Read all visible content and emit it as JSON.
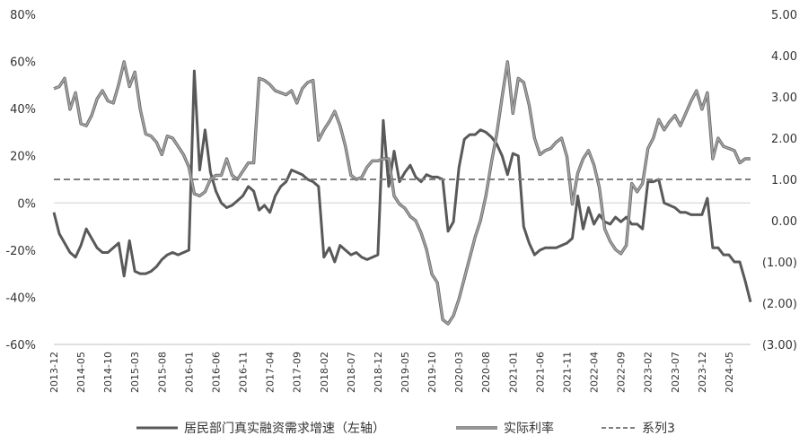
{
  "chart_data": {
    "type": "line",
    "title": "",
    "grid": false,
    "legend_position": "bottom",
    "x_tick_labels": [
      "2013-12",
      "2014-05",
      "2014-10",
      "2015-03",
      "2015-08",
      "2016-01",
      "2016-06",
      "2016-11",
      "2017-04",
      "2017-09",
      "2018-02",
      "2018-07",
      "2018-12",
      "2019-05",
      "2019-10",
      "2020-03",
      "2020-08",
      "2021-01",
      "2021-06",
      "2021-11",
      "2022-04",
      "2022-09",
      "2023-02",
      "2023-07",
      "2023-12",
      "2024-05"
    ],
    "x_start": "2013-12",
    "x_end": "2024-09",
    "left_axis": {
      "ylim": [
        -60,
        80
      ],
      "tick_labels": [
        "-60%",
        "-40%",
        "-20%",
        "0%",
        "20%",
        "40%",
        "60%",
        "80%"
      ],
      "tick_values": [
        -60,
        -40,
        -20,
        0,
        20,
        40,
        60,
        80
      ]
    },
    "right_axis": {
      "ylim": [
        -3,
        5
      ],
      "tick_labels": [
        "(3.00)",
        "(2.00)",
        "(1.00)",
        "0.00",
        "1.00",
        "2.00",
        "3.00",
        "4.00",
        "5.00"
      ],
      "tick_values": [
        -3,
        -2,
        -1,
        0,
        1,
        2,
        3,
        4,
        5
      ]
    },
    "series": [
      {
        "name": "居民部门真实融资需求增速（左轴）",
        "axis": "left",
        "color": "#595959",
        "style": "solid",
        "points": [
          [
            "2013-12",
            -4
          ],
          [
            "2014-01",
            -13
          ],
          [
            "2014-02",
            -17
          ],
          [
            "2014-03",
            -21
          ],
          [
            "2014-04",
            -23
          ],
          [
            "2014-05",
            -18
          ],
          [
            "2014-06",
            -11
          ],
          [
            "2014-07",
            -15
          ],
          [
            "2014-08",
            -19
          ],
          [
            "2014-09",
            -21
          ],
          [
            "2014-10",
            -21
          ],
          [
            "2014-11",
            -19
          ],
          [
            "2014-12",
            -17
          ],
          [
            "2015-01",
            -31
          ],
          [
            "2015-02",
            -16
          ],
          [
            "2015-03",
            -29
          ],
          [
            "2015-04",
            -30
          ],
          [
            "2015-05",
            -30
          ],
          [
            "2015-06",
            -29
          ],
          [
            "2015-07",
            -27
          ],
          [
            "2015-08",
            -24
          ],
          [
            "2015-09",
            -22
          ],
          [
            "2015-10",
            -21
          ],
          [
            "2015-11",
            -22
          ],
          [
            "2015-12",
            -21
          ],
          [
            "2016-01",
            -20
          ],
          [
            "2016-02",
            56
          ],
          [
            "2016-03",
            14
          ],
          [
            "2016-04",
            31
          ],
          [
            "2016-05",
            13
          ],
          [
            "2016-06",
            5
          ],
          [
            "2016-07",
            0
          ],
          [
            "2016-08",
            -2
          ],
          [
            "2016-09",
            -1
          ],
          [
            "2016-10",
            1
          ],
          [
            "2016-11",
            3
          ],
          [
            "2016-12",
            7
          ],
          [
            "2017-01",
            5
          ],
          [
            "2017-02",
            -3
          ],
          [
            "2017-03",
            -1
          ],
          [
            "2017-04",
            -4
          ],
          [
            "2017-05",
            3
          ],
          [
            "2017-06",
            7
          ],
          [
            "2017-07",
            9
          ],
          [
            "2017-08",
            14
          ],
          [
            "2017-09",
            13
          ],
          [
            "2017-10",
            12
          ],
          [
            "2017-11",
            10
          ],
          [
            "2017-12",
            9
          ],
          [
            "2018-01",
            7
          ],
          [
            "2018-02",
            -23
          ],
          [
            "2018-03",
            -19
          ],
          [
            "2018-04",
            -25
          ],
          [
            "2018-05",
            -18
          ],
          [
            "2018-06",
            -20
          ],
          [
            "2018-07",
            -22
          ],
          [
            "2018-08",
            -21
          ],
          [
            "2018-09",
            -23
          ],
          [
            "2018-10",
            -24
          ],
          [
            "2018-11",
            -23
          ],
          [
            "2018-12",
            -22
          ],
          [
            "2019-01",
            35
          ],
          [
            "2019-02",
            7
          ],
          [
            "2019-03",
            22
          ],
          [
            "2019-04",
            9
          ],
          [
            "2019-05",
            13
          ],
          [
            "2019-06",
            16
          ],
          [
            "2019-07",
            11
          ],
          [
            "2019-08",
            9
          ],
          [
            "2019-09",
            12
          ],
          [
            "2019-10",
            11
          ],
          [
            "2019-11",
            11
          ],
          [
            "2019-12",
            10
          ],
          [
            "2020-01",
            -12
          ],
          [
            "2020-02",
            -8
          ],
          [
            "2020-03",
            15
          ],
          [
            "2020-04",
            27
          ],
          [
            "2020-05",
            29
          ],
          [
            "2020-06",
            29
          ],
          [
            "2020-07",
            31
          ],
          [
            "2020-08",
            30
          ],
          [
            "2020-09",
            28
          ],
          [
            "2020-10",
            25
          ],
          [
            "2020-11",
            20
          ],
          [
            "2020-12",
            12
          ],
          [
            "2021-01",
            21
          ],
          [
            "2021-02",
            20
          ],
          [
            "2021-03",
            -10
          ],
          [
            "2021-04",
            -17
          ],
          [
            "2021-05",
            -22
          ],
          [
            "2021-06",
            -20
          ],
          [
            "2021-07",
            -19
          ],
          [
            "2021-08",
            -19
          ],
          [
            "2021-09",
            -19
          ],
          [
            "2021-10",
            -18
          ],
          [
            "2021-11",
            -17
          ],
          [
            "2021-12",
            -15
          ],
          [
            "2022-01",
            3
          ],
          [
            "2022-02",
            -11
          ],
          [
            "2022-03",
            -2
          ],
          [
            "2022-04",
            -9
          ],
          [
            "2022-05",
            -5
          ],
          [
            "2022-06",
            -8
          ],
          [
            "2022-07",
            -9
          ],
          [
            "2022-08",
            -6
          ],
          [
            "2022-09",
            -8
          ],
          [
            "2022-10",
            -6
          ],
          [
            "2022-11",
            -9
          ],
          [
            "2022-12",
            -9
          ],
          [
            "2023-01",
            -11
          ],
          [
            "2023-02",
            9
          ],
          [
            "2023-03",
            9
          ],
          [
            "2023-04",
            10
          ],
          [
            "2023-05",
            0
          ],
          [
            "2023-06",
            -1
          ],
          [
            "2023-07",
            -2
          ],
          [
            "2023-08",
            -4
          ],
          [
            "2023-09",
            -4
          ],
          [
            "2023-10",
            -5
          ],
          [
            "2023-11",
            -5
          ],
          [
            "2023-12",
            -5
          ],
          [
            "2024-01",
            2
          ],
          [
            "2024-02",
            -19
          ],
          [
            "2024-03",
            -19
          ],
          [
            "2024-04",
            -22
          ],
          [
            "2024-05",
            -22
          ],
          [
            "2024-06",
            -25
          ],
          [
            "2024-07",
            -25
          ],
          [
            "2024-08",
            -33
          ],
          [
            "2024-09",
            -42
          ]
        ]
      },
      {
        "name": "实际利率",
        "axis": "right",
        "color": "#a6a6a6",
        "style": "outlined",
        "points": [
          [
            "2013-12",
            3.2
          ],
          [
            "2014-01",
            3.25
          ],
          [
            "2014-02",
            3.45
          ],
          [
            "2014-03",
            2.7
          ],
          [
            "2014-04",
            3.1
          ],
          [
            "2014-05",
            2.35
          ],
          [
            "2014-06",
            2.3
          ],
          [
            "2014-07",
            2.55
          ],
          [
            "2014-08",
            2.95
          ],
          [
            "2014-09",
            3.15
          ],
          [
            "2014-10",
            2.9
          ],
          [
            "2014-11",
            2.85
          ],
          [
            "2014-12",
            3.3
          ],
          [
            "2015-01",
            3.85
          ],
          [
            "2015-02",
            3.25
          ],
          [
            "2015-03",
            3.6
          ],
          [
            "2015-04",
            2.7
          ],
          [
            "2015-05",
            2.1
          ],
          [
            "2015-06",
            2.05
          ],
          [
            "2015-07",
            1.9
          ],
          [
            "2015-08",
            1.6
          ],
          [
            "2015-09",
            2.05
          ],
          [
            "2015-10",
            2.0
          ],
          [
            "2015-11",
            1.8
          ],
          [
            "2015-12",
            1.6
          ],
          [
            "2016-01",
            1.3
          ],
          [
            "2016-02",
            0.65
          ],
          [
            "2016-03",
            0.6
          ],
          [
            "2016-04",
            0.7
          ],
          [
            "2016-05",
            1.0
          ],
          [
            "2016-06",
            1.1
          ],
          [
            "2016-07",
            1.1
          ],
          [
            "2016-08",
            1.5
          ],
          [
            "2016-09",
            1.1
          ],
          [
            "2016-10",
            1.0
          ],
          [
            "2016-11",
            1.2
          ],
          [
            "2016-12",
            1.4
          ],
          [
            "2017-01",
            1.4
          ],
          [
            "2017-02",
            3.45
          ],
          [
            "2017-03",
            3.4
          ],
          [
            "2017-04",
            3.3
          ],
          [
            "2017-05",
            3.15
          ],
          [
            "2017-06",
            3.1
          ],
          [
            "2017-07",
            3.05
          ],
          [
            "2017-08",
            3.15
          ],
          [
            "2017-09",
            2.85
          ],
          [
            "2017-10",
            3.2
          ],
          [
            "2017-11",
            3.35
          ],
          [
            "2017-12",
            3.4
          ],
          [
            "2018-01",
            1.95
          ],
          [
            "2018-02",
            2.2
          ],
          [
            "2018-03",
            2.4
          ],
          [
            "2018-04",
            2.65
          ],
          [
            "2018-05",
            2.3
          ],
          [
            "2018-06",
            1.8
          ],
          [
            "2018-07",
            1.1
          ],
          [
            "2018-08",
            1.0
          ],
          [
            "2018-09",
            1.05
          ],
          [
            "2018-10",
            1.3
          ],
          [
            "2018-11",
            1.45
          ],
          [
            "2018-12",
            1.45
          ],
          [
            "2019-01",
            1.5
          ],
          [
            "2019-02",
            1.5
          ],
          [
            "2019-03",
            0.6
          ],
          [
            "2019-04",
            0.4
          ],
          [
            "2019-05",
            0.3
          ],
          [
            "2019-06",
            0.1
          ],
          [
            "2019-07",
            0.0
          ],
          [
            "2019-08",
            -0.3
          ],
          [
            "2019-09",
            -0.7
          ],
          [
            "2019-10",
            -1.3
          ],
          [
            "2019-11",
            -1.5
          ],
          [
            "2019-12",
            -2.4
          ],
          [
            "2020-01",
            -2.5
          ],
          [
            "2020-02",
            -2.3
          ],
          [
            "2020-03",
            -1.9
          ],
          [
            "2020-04",
            -1.4
          ],
          [
            "2020-05",
            -0.9
          ],
          [
            "2020-06",
            -0.4
          ],
          [
            "2020-07",
            0.0
          ],
          [
            "2020-08",
            0.6
          ],
          [
            "2020-09",
            1.4
          ],
          [
            "2020-10",
            2.1
          ],
          [
            "2020-11",
            3.0
          ],
          [
            "2020-12",
            3.85
          ],
          [
            "2021-01",
            2.6
          ],
          [
            "2021-02",
            3.45
          ],
          [
            "2021-03",
            3.35
          ],
          [
            "2021-04",
            2.8
          ],
          [
            "2021-05",
            2.0
          ],
          [
            "2021-06",
            1.6
          ],
          [
            "2021-07",
            1.7
          ],
          [
            "2021-08",
            1.75
          ],
          [
            "2021-09",
            1.9
          ],
          [
            "2021-10",
            2.0
          ],
          [
            "2021-11",
            1.55
          ],
          [
            "2021-12",
            0.4
          ],
          [
            "2022-01",
            1.15
          ],
          [
            "2022-02",
            1.5
          ],
          [
            "2022-03",
            1.7
          ],
          [
            "2022-04",
            1.35
          ],
          [
            "2022-05",
            0.8
          ],
          [
            "2022-06",
            -0.2
          ],
          [
            "2022-07",
            -0.5
          ],
          [
            "2022-08",
            -0.7
          ],
          [
            "2022-09",
            -0.8
          ],
          [
            "2022-10",
            -0.6
          ],
          [
            "2022-11",
            0.9
          ],
          [
            "2022-12",
            0.7
          ],
          [
            "2023-01",
            0.9
          ],
          [
            "2023-02",
            1.75
          ],
          [
            "2023-03",
            2.0
          ],
          [
            "2023-04",
            2.45
          ],
          [
            "2023-05",
            2.2
          ],
          [
            "2023-06",
            2.4
          ],
          [
            "2023-07",
            2.55
          ],
          [
            "2023-08",
            2.3
          ],
          [
            "2023-09",
            2.6
          ],
          [
            "2023-10",
            2.9
          ],
          [
            "2023-11",
            3.15
          ],
          [
            "2023-12",
            2.7
          ],
          [
            "2024-01",
            3.1
          ],
          [
            "2024-02",
            1.5
          ],
          [
            "2024-03",
            2.0
          ],
          [
            "2024-04",
            1.8
          ],
          [
            "2024-05",
            1.75
          ],
          [
            "2024-06",
            1.7
          ],
          [
            "2024-07",
            1.4
          ],
          [
            "2024-08",
            1.5
          ],
          [
            "2024-09",
            1.5
          ]
        ]
      },
      {
        "name": "系列3",
        "axis": "right",
        "color": "#7f7f7f",
        "style": "dashed",
        "points": [
          [
            "2013-12",
            1.0
          ],
          [
            "2024-09",
            1.0
          ]
        ]
      }
    ]
  }
}
